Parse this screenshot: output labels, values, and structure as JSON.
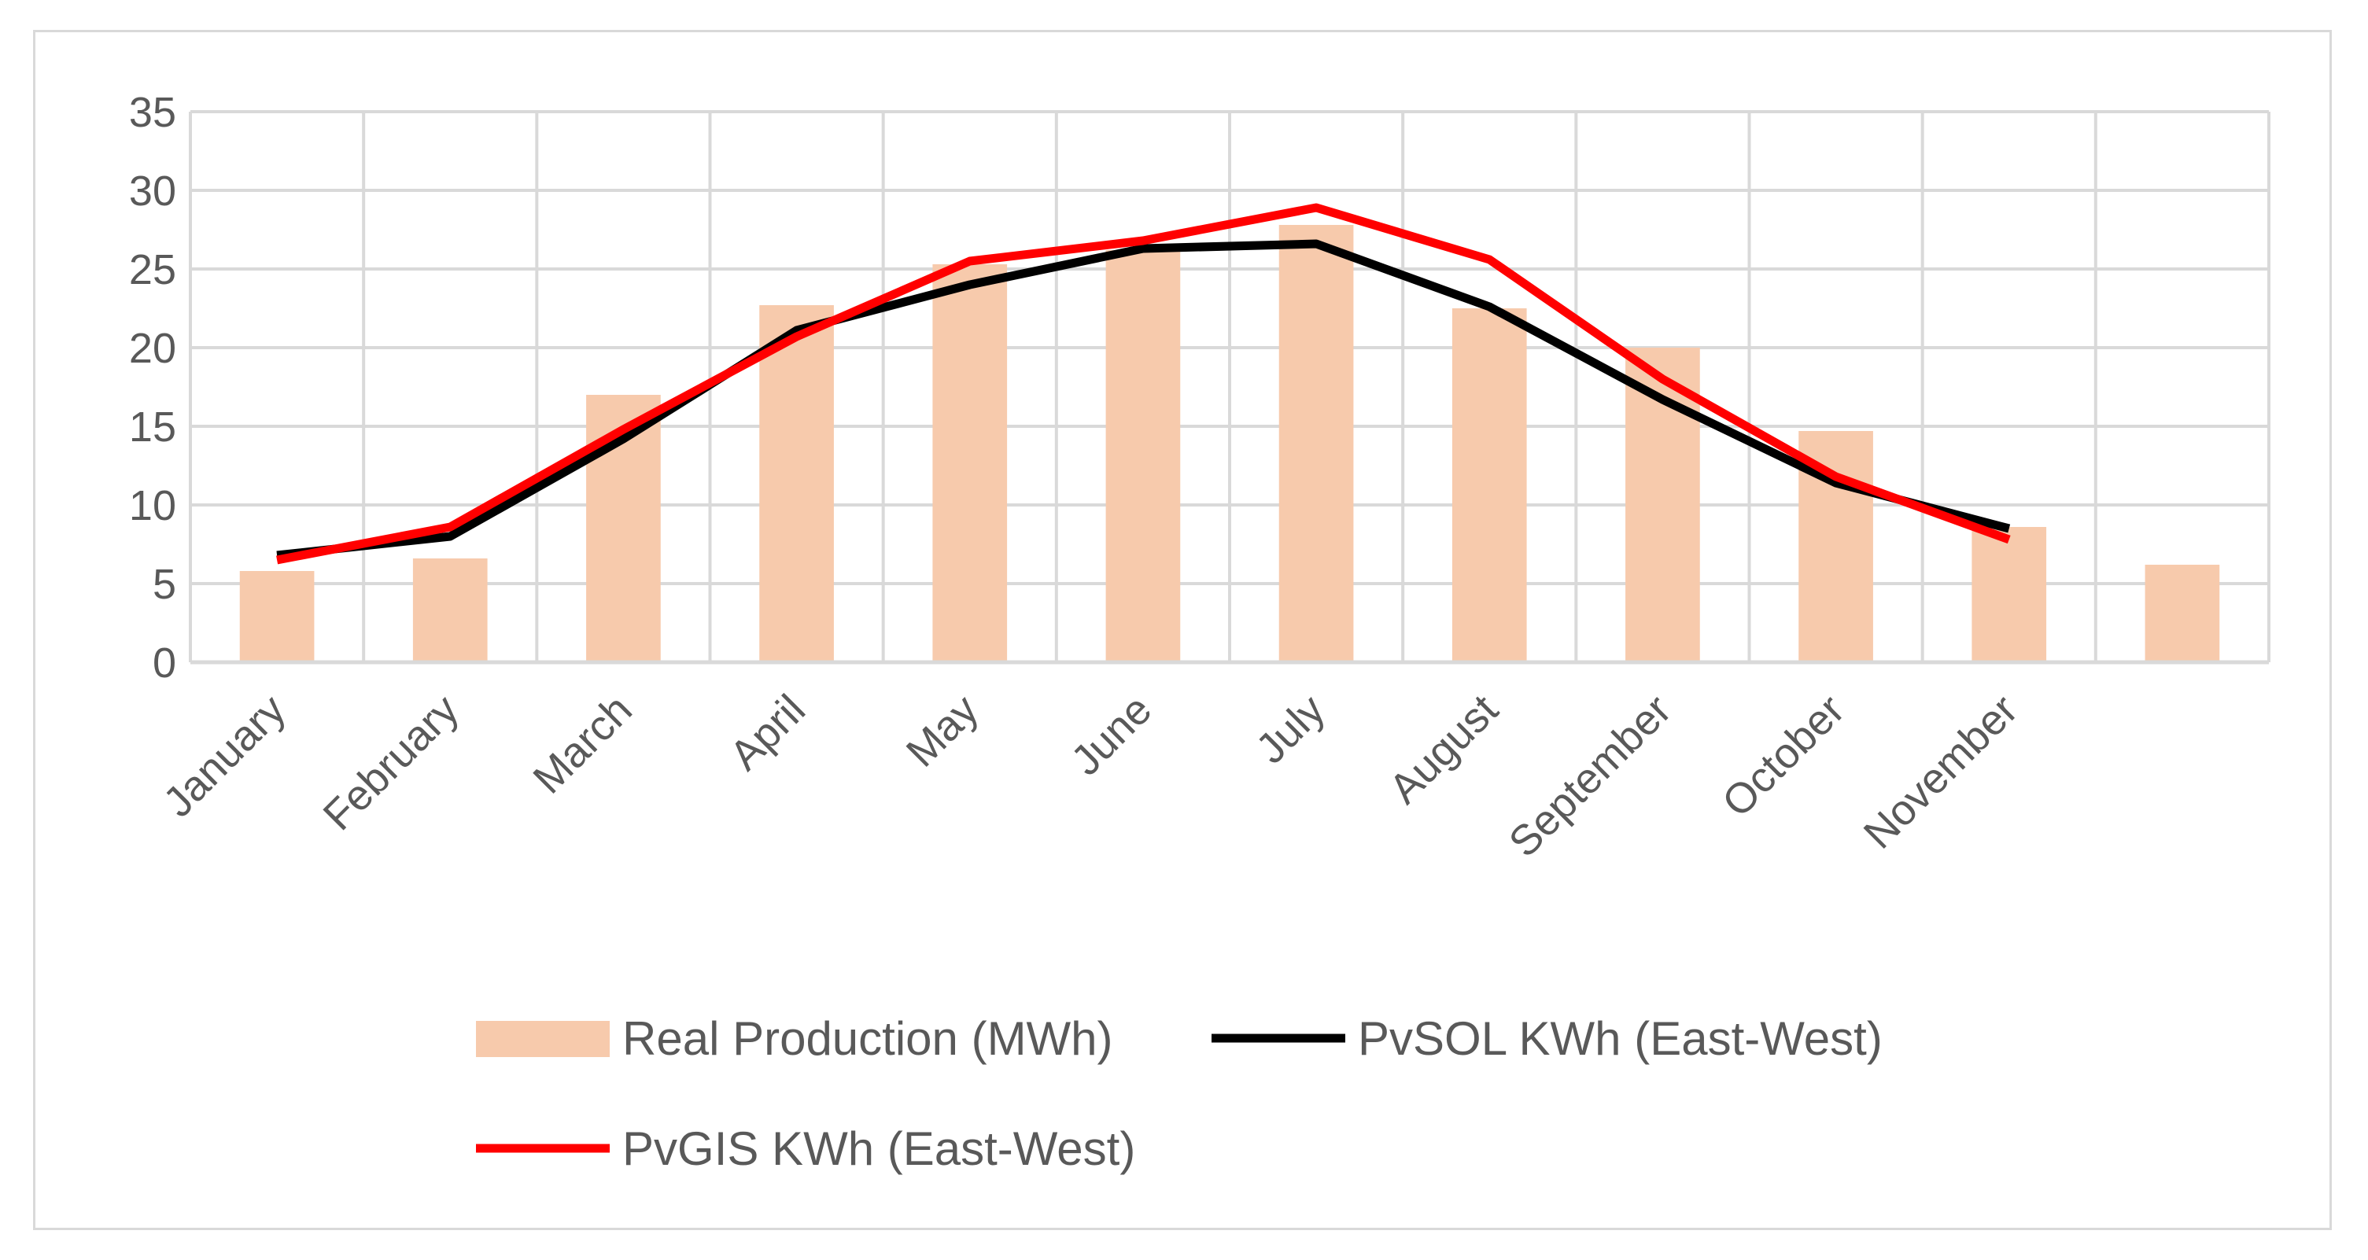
{
  "chart_data": {
    "type": "bar",
    "title": "",
    "xlabel": "",
    "ylabel": "",
    "ylim": [
      0,
      35
    ],
    "yticks": [
      0,
      5,
      10,
      15,
      20,
      25,
      30,
      35
    ],
    "grid": true,
    "legend_position": "bottom",
    "categories": [
      "January",
      "February",
      "March",
      "April",
      "May",
      "June",
      "July",
      "August",
      "September",
      "October",
      "November",
      ""
    ],
    "series": [
      {
        "name": "Real Production (MWh)",
        "kind": "bar",
        "color": "#f7caac",
        "values": [
          5.8,
          6.6,
          17.0,
          22.7,
          25.3,
          26.2,
          27.8,
          22.5,
          20.0,
          14.7,
          8.6,
          6.2
        ]
      },
      {
        "name": "PvSOL KWh (East-West)",
        "kind": "line",
        "color": "#000000",
        "values": [
          6.8,
          8.0,
          14.2,
          21.1,
          24.0,
          26.3,
          26.6,
          22.6,
          16.7,
          11.4,
          8.5,
          null
        ]
      },
      {
        "name": "PvGIS KWh (East-West)",
        "kind": "line",
        "color": "#ff0000",
        "values": [
          6.5,
          8.6,
          14.8,
          20.7,
          25.5,
          26.8,
          28.9,
          25.6,
          18.0,
          11.8,
          7.8,
          null
        ]
      }
    ]
  }
}
